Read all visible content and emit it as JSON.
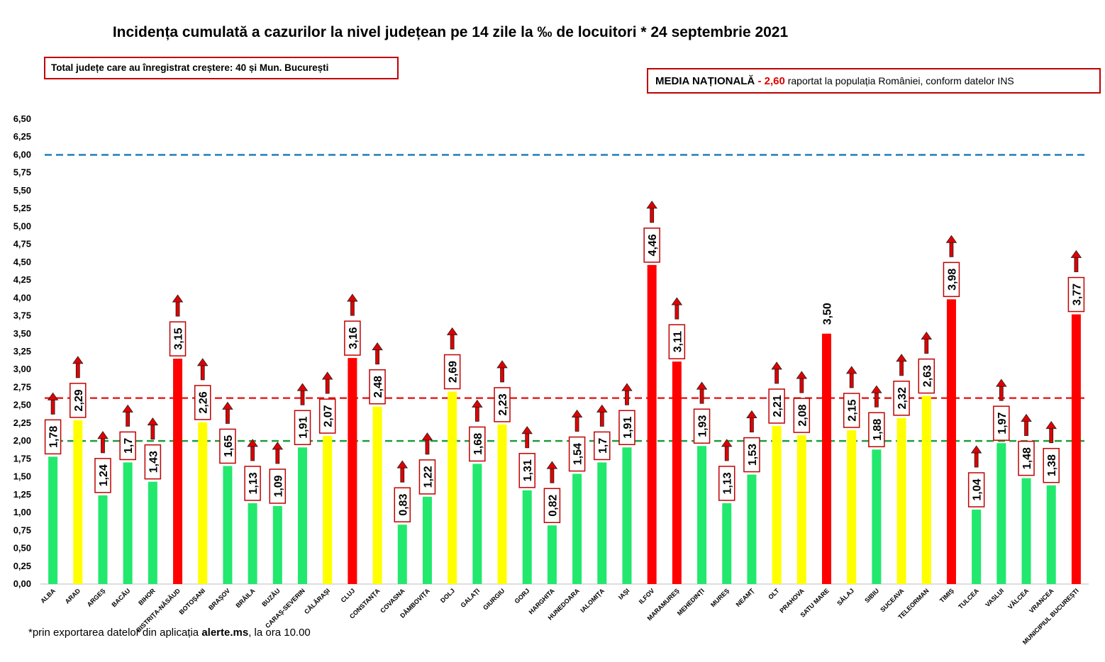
{
  "title": "Incidența cumulată a cazurilor la nivel județean pe 14 zile la ‰ de locuitori * 24 septembrie 2021",
  "increase_box": "Total județe care au înregistrat creștere:  40 și Mun. București",
  "national_box": {
    "label": "MEDIA NAȚIONALĂ",
    "sep": "  - ",
    "value": "2,60",
    "rest": " raportat la populația României, conform datelor INS"
  },
  "footnote": {
    "prefix": "*prin exportarea datelor din aplicația ",
    "app": "alerte.ms",
    "suffix": ", la ora 10.00"
  },
  "colors": {
    "green": "#22e86e",
    "yellow": "#ffff00",
    "red": "#ff0000",
    "line_6": "#1f7fb8",
    "line_2_6": "#e82020",
    "line_2": "#1e9e3c",
    "arrow": "#e00000",
    "label_border": "#c00000"
  },
  "chart_data": {
    "type": "bar",
    "ylim": [
      0,
      6.5
    ],
    "ytick_step": 0.25,
    "ytick_labels": [
      "0,00",
      "0,25",
      "0,50",
      "0,75",
      "1,00",
      "1,25",
      "1,50",
      "1,75",
      "2,00",
      "2,25",
      "2,50",
      "2,75",
      "3,00",
      "3,25",
      "3,50",
      "3,75",
      "4,00",
      "4,25",
      "4,50",
      "4,75",
      "5,00",
      "5,25",
      "5,50",
      "5,75",
      "6,00",
      "6,25",
      "6,50"
    ],
    "reference_lines": [
      {
        "value": 6.0,
        "color": "#1f7fb8"
      },
      {
        "value": 2.6,
        "color": "#e82020"
      },
      {
        "value": 2.0,
        "color": "#1e9e3c"
      }
    ],
    "categories": [
      "ALBA",
      "ARAD",
      "ARGEȘ",
      "BACĂU",
      "BIHOR",
      "BISTRIȚA-NĂSĂUD",
      "BOTOȘANI",
      "BRAȘOV",
      "BRĂILA",
      "BUZĂU",
      "CARAȘ-SEVERIN",
      "CĂLĂRAȘI",
      "CLUJ",
      "CONSTANȚA",
      "COVASNA",
      "DÂMBOVIȚA",
      "DOLJ",
      "GALAȚI",
      "GIURGIU",
      "GORJ",
      "HARGHITA",
      "HUNEDOARA",
      "IALOMIȚA",
      "IAȘI",
      "ILFOV",
      "MARAMUREȘ",
      "MEHEDINȚI",
      "MUREȘ",
      "NEAMȚ",
      "OLT",
      "PRAHOVA",
      "SATU MARE",
      "SĂLAJ",
      "SIBIU",
      "SUCEAVA",
      "TELEORMAN",
      "TIMIȘ",
      "TULCEA",
      "VASLUI",
      "VÂLCEA",
      "VRANCEA",
      "MUNICIPIUL BUCUREȘTI"
    ],
    "values": [
      1.78,
      2.29,
      1.24,
      1.7,
      1.43,
      3.15,
      2.26,
      1.65,
      1.13,
      1.09,
      1.91,
      2.07,
      3.16,
      2.48,
      0.83,
      1.22,
      2.69,
      1.68,
      2.23,
      1.31,
      0.82,
      1.54,
      1.7,
      1.91,
      4.46,
      3.11,
      1.93,
      1.13,
      1.53,
      2.21,
      2.08,
      3.5,
      2.15,
      1.88,
      2.32,
      2.63,
      3.98,
      1.04,
      1.97,
      1.48,
      1.38,
      3.77
    ],
    "labels": [
      "1,78",
      "2,29",
      "1,24",
      "1,7",
      "1,43",
      "3,15",
      "2,26",
      "1,65",
      "1,13",
      "1,09",
      "1,91",
      "2,07",
      "3,16",
      "2,48",
      "0,83",
      "1,22",
      "2,69",
      "1,68",
      "2,23",
      "1,31",
      "0,82",
      "1,54",
      "1,7",
      "1,91",
      "4,46",
      "3,11",
      "1,93",
      "1,13",
      "1,53",
      "2,21",
      "2,08",
      "3,50",
      "2,15",
      "1,88",
      "2,32",
      "2,63",
      "3,98",
      "1,04",
      "1,97",
      "1,48",
      "1,38",
      "3,77"
    ],
    "bar_colors": [
      "green",
      "yellow",
      "green",
      "green",
      "green",
      "red",
      "yellow",
      "green",
      "green",
      "green",
      "green",
      "yellow",
      "red",
      "yellow",
      "green",
      "green",
      "yellow",
      "green",
      "yellow",
      "green",
      "green",
      "green",
      "green",
      "green",
      "red",
      "red",
      "green",
      "green",
      "green",
      "yellow",
      "yellow",
      "red",
      "yellow",
      "green",
      "yellow",
      "yellow",
      "red",
      "green",
      "green",
      "green",
      "green",
      "red"
    ],
    "increase_arrow": [
      true,
      true,
      true,
      true,
      true,
      true,
      true,
      true,
      true,
      true,
      true,
      true,
      true,
      true,
      true,
      true,
      true,
      true,
      true,
      true,
      true,
      true,
      true,
      true,
      true,
      true,
      true,
      true,
      true,
      true,
      true,
      false,
      true,
      true,
      true,
      true,
      true,
      true,
      true,
      true,
      true,
      true
    ],
    "label_boxed": [
      true,
      true,
      true,
      true,
      true,
      true,
      true,
      true,
      true,
      true,
      true,
      true,
      true,
      true,
      true,
      true,
      true,
      true,
      true,
      true,
      true,
      true,
      true,
      true,
      true,
      true,
      true,
      true,
      true,
      true,
      true,
      false,
      true,
      true,
      true,
      true,
      true,
      true,
      true,
      true,
      true,
      true
    ]
  }
}
